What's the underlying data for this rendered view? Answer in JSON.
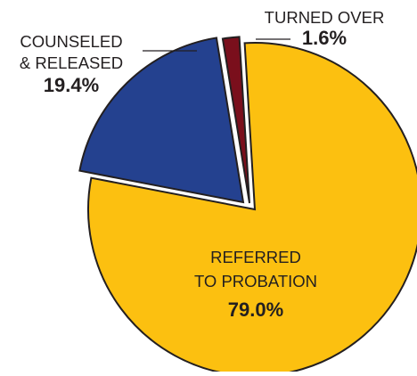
{
  "chart_data": {
    "type": "pie",
    "title": "",
    "slices": [
      {
        "label_lines": [
          "REFERRED",
          "TO PROBATION"
        ],
        "value": 79.0,
        "value_label": "79.0%",
        "color": "#fcc010"
      },
      {
        "label_lines": [
          "COUNSELED",
          "& RELEASED"
        ],
        "value": 19.4,
        "value_label": "19.4%",
        "color": "#24418f"
      },
      {
        "label_lines": [
          "TURNED OVER"
        ],
        "value": 1.6,
        "value_label": "1.6%",
        "color": "#7a0f1c"
      }
    ],
    "exploded": true,
    "legend": "none",
    "outline_color": "#231f20"
  }
}
